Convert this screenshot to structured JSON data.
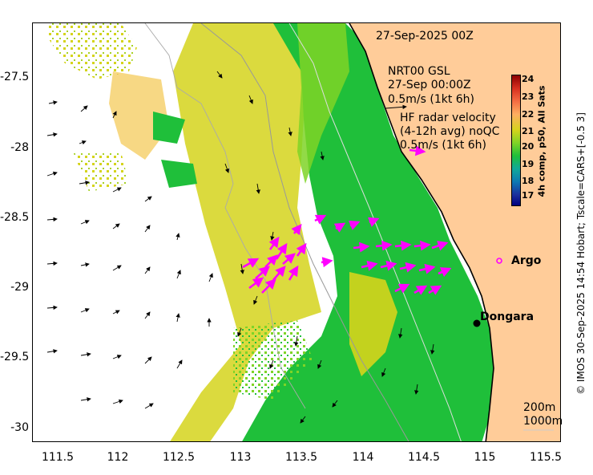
{
  "map": {
    "date_title": "27-Sep-2025 00Z",
    "model_label": "NRT00 GSL",
    "model_time": "27-Sep 00:00Z",
    "model_scale": "0.5m/s (1kt 6h)",
    "radar_title": "HF radar velocity",
    "radar_avg": "(4-12h avg) noQC",
    "radar_scale": "0.5m/s (1kt 6h)",
    "contour_1": "200m",
    "contour_2": "1000m",
    "places": {
      "argo": "Argo",
      "dongara": "Dongara"
    },
    "colorbar": {
      "label": "4h comp, p50, All Sats",
      "ticks": [
        "24",
        "23",
        "22",
        "21",
        "20",
        "19",
        "18",
        "17"
      ],
      "range": [
        16.5,
        24.5
      ]
    },
    "credit": "© IMOS 30-Sep-2025 14:54 Hobart; Tscale=CARS+[-0.5 3]",
    "x_ticks": [
      "111.5",
      "112",
      "112.5",
      "113",
      "113.5",
      "114",
      "114.5",
      "115",
      "115.5"
    ],
    "y_ticks": [
      "-27.5",
      "-28",
      "-28.5",
      "-29",
      "-29.5",
      "-30"
    ],
    "colors": {
      "land": "#ffcc99",
      "radar_arrows": "#ff00ff",
      "model_arrows": "#000000",
      "sst_20": "#1fbf3a",
      "sst_21": "#7fd427",
      "sst_22": "#d5d41c",
      "sst_23": "#f0b81f"
    }
  }
}
